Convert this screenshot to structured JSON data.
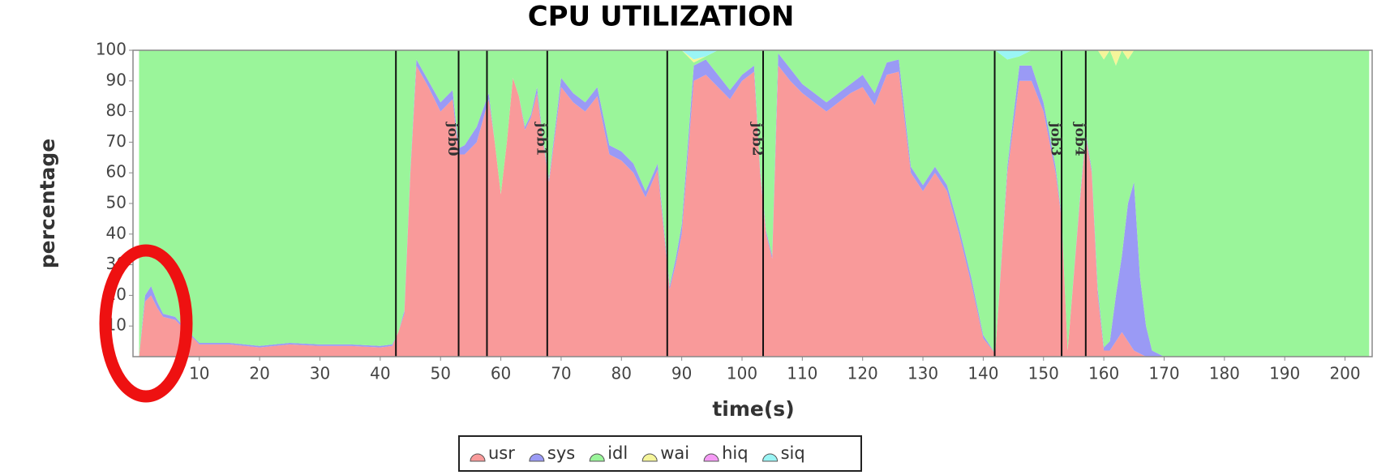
{
  "chart_data": {
    "type": "stacked_area",
    "title": "CPU UTILIZATION",
    "x_label": "time(s)",
    "y_label": "percentage",
    "xlim": [
      -1,
      204.5
    ],
    "ylim": [
      0,
      100
    ],
    "xticks": [
      10,
      20,
      30,
      40,
      50,
      60,
      70,
      80,
      90,
      100,
      110,
      120,
      130,
      140,
      150,
      160,
      170,
      180,
      190,
      200
    ],
    "yticks": [
      10,
      20,
      30,
      40,
      50,
      60,
      70,
      80,
      90,
      100
    ],
    "x": [
      0,
      1,
      2,
      3,
      4,
      6,
      8,
      10,
      15,
      20,
      25,
      30,
      35,
      40,
      42,
      43,
      44,
      45,
      46,
      48,
      50,
      52,
      53,
      54,
      56,
      58,
      59,
      60,
      61,
      62,
      63,
      64,
      65,
      66,
      67,
      68,
      70,
      72,
      74,
      76,
      78,
      80,
      82,
      84,
      86,
      88,
      89,
      90,
      92,
      94,
      96,
      98,
      100,
      102,
      103,
      104,
      105,
      106,
      108,
      110,
      112,
      114,
      116,
      118,
      120,
      122,
      124,
      126,
      128,
      130,
      132,
      134,
      136,
      138,
      140,
      142,
      144,
      146,
      148,
      150,
      152,
      153,
      154,
      156,
      157,
      158,
      159,
      160,
      161,
      162,
      163,
      164,
      165,
      166,
      167,
      168,
      170,
      204
    ],
    "series": [
      {
        "name": "usr",
        "color": "#f99a9a",
        "values": [
          0,
          18,
          20,
          16,
          13,
          12,
          8,
          4,
          4,
          3,
          4,
          3.5,
          3.5,
          3,
          3.5,
          8,
          14,
          60,
          95,
          88,
          80,
          84,
          66,
          66,
          70,
          84,
          70,
          53,
          70,
          91,
          85,
          74,
          78,
          86,
          70,
          57,
          88,
          83,
          80,
          85,
          66,
          64,
          60,
          52,
          61,
          22,
          30,
          40,
          90,
          92,
          88,
          84,
          90,
          93,
          60,
          40,
          32,
          95,
          90,
          86,
          83,
          80,
          83,
          86,
          88,
          82,
          92,
          93,
          60,
          54,
          60,
          54,
          40,
          24,
          6,
          1,
          60,
          90,
          90,
          80,
          60,
          45,
          2,
          50,
          72,
          60,
          20,
          2,
          2,
          5,
          8,
          5,
          2,
          1,
          0,
          0,
          0,
          0
        ]
      },
      {
        "name": "sys",
        "color": "#9a9af5",
        "values": [
          0,
          2,
          3,
          2,
          1,
          1,
          0.5,
          0.5,
          0.5,
          0.5,
          0.5,
          0.5,
          0.5,
          0.5,
          0.5,
          0,
          1,
          1,
          2,
          2,
          3,
          3,
          2,
          3,
          5,
          2,
          0,
          0,
          0,
          0,
          0,
          1,
          1,
          2,
          1,
          1,
          3,
          3,
          3,
          3,
          3,
          3,
          3,
          2,
          2,
          1,
          2,
          3,
          5,
          5,
          4,
          3,
          2,
          2,
          1,
          1,
          1,
          4,
          4,
          3,
          3,
          3,
          3,
          3,
          4,
          4,
          4,
          4,
          2,
          2,
          2,
          2,
          2,
          2,
          1,
          0,
          2,
          5,
          5,
          3,
          2,
          1,
          0,
          1,
          1,
          1,
          2,
          1,
          3,
          15,
          25,
          45,
          55,
          25,
          10,
          2,
          0,
          0
        ]
      },
      {
        "name": "idl",
        "color": "#9af59a",
        "values": [
          100,
          80,
          77,
          82,
          86,
          87,
          91.5,
          95.5,
          95.5,
          96.5,
          95.5,
          96,
          96,
          96.5,
          96,
          92,
          85,
          39,
          3,
          10,
          17,
          13,
          32,
          31,
          25,
          14,
          30,
          47,
          30,
          9,
          15,
          25,
          21,
          12,
          29,
          42,
          9,
          14,
          17,
          12,
          31,
          33,
          37,
          46,
          37,
          77,
          68,
          57,
          1,
          1,
          8,
          13,
          8,
          5,
          39,
          59,
          67,
          1,
          6,
          11,
          14,
          17,
          14,
          11,
          8,
          14,
          4,
          3,
          38,
          44,
          38,
          44,
          58,
          74,
          93,
          99,
          35,
          3,
          5,
          17,
          38,
          54,
          98,
          49,
          27,
          39,
          78,
          94,
          95,
          75,
          67,
          47,
          43,
          74,
          90,
          98,
          100,
          100
        ]
      },
      {
        "name": "wai",
        "color": "#f5f59a",
        "values": [
          0,
          0,
          0,
          0,
          0,
          0,
          0,
          0,
          0,
          0,
          0,
          0,
          0,
          0,
          0,
          0,
          0,
          0,
          0,
          0,
          0,
          0,
          0,
          0,
          0,
          0,
          0,
          0,
          0,
          0,
          0,
          0,
          0,
          0,
          0,
          0,
          0,
          0,
          0,
          0,
          0,
          0,
          0,
          0,
          0,
          0,
          0,
          0,
          1,
          0,
          0,
          0,
          0,
          0,
          0,
          0,
          0,
          0,
          0,
          0,
          0,
          0,
          0,
          0,
          0,
          0,
          0,
          0,
          0,
          0,
          0,
          0,
          0,
          0,
          0,
          0,
          0,
          0,
          0,
          0,
          0,
          0,
          0,
          0,
          0,
          0,
          0,
          3,
          0,
          5,
          0,
          3,
          0,
          0,
          0,
          0,
          0,
          0
        ]
      },
      {
        "name": "hiq",
        "color": "#f59af5",
        "values": [
          0,
          0,
          0,
          0,
          0,
          0,
          0,
          0,
          0,
          0,
          0,
          0,
          0,
          0,
          0,
          0,
          0,
          0,
          0,
          0,
          0,
          0,
          0,
          0,
          0,
          0,
          0,
          0,
          0,
          0,
          0,
          0,
          0,
          0,
          0,
          0,
          0,
          0,
          0,
          0,
          0,
          0,
          0,
          0,
          0,
          0,
          0,
          0,
          0,
          0,
          0,
          0,
          0,
          0,
          0,
          0,
          0,
          0,
          0,
          0,
          0,
          0,
          0,
          0,
          0,
          0,
          0,
          0,
          0,
          0,
          0,
          0,
          0,
          0,
          0,
          0,
          0,
          0,
          0,
          0,
          0,
          0,
          0,
          0,
          0,
          0,
          0,
          0,
          0,
          0,
          0,
          0,
          0,
          0,
          0,
          0,
          0,
          0
        ]
      },
      {
        "name": "siq",
        "color": "#9af5f5",
        "values": [
          0,
          0,
          0,
          0,
          0,
          0,
          0,
          0,
          0,
          0,
          0,
          0,
          0,
          0,
          0,
          0,
          0,
          0,
          0,
          0,
          0,
          0,
          0,
          0,
          0,
          0,
          0,
          0,
          0,
          0,
          0,
          0,
          0,
          0,
          0,
          0,
          0,
          0,
          0,
          0,
          0,
          0,
          0,
          0,
          0,
          0,
          0,
          0,
          3,
          2,
          0,
          0,
          0,
          0,
          0,
          0,
          0,
          0,
          0,
          0,
          0,
          0,
          0,
          0,
          0,
          0,
          0,
          0,
          0,
          0,
          0,
          0,
          0,
          0,
          0,
          0,
          3,
          2,
          0,
          0,
          0,
          0,
          0,
          0,
          0,
          0,
          0,
          0,
          0,
          0,
          0,
          0,
          0,
          0,
          0,
          0,
          0,
          0
        ]
      }
    ],
    "markers": [
      {
        "x": 42.6
      },
      {
        "x": 53,
        "label": "job0"
      },
      {
        "x": 57.7
      },
      {
        "x": 67.7,
        "label": "job1"
      },
      {
        "x": 87.6
      },
      {
        "x": 103.5,
        "label": "job2"
      },
      {
        "x": 141.9
      },
      {
        "x": 153,
        "label": "job3"
      },
      {
        "x": 157,
        "label": "job4"
      }
    ]
  }
}
